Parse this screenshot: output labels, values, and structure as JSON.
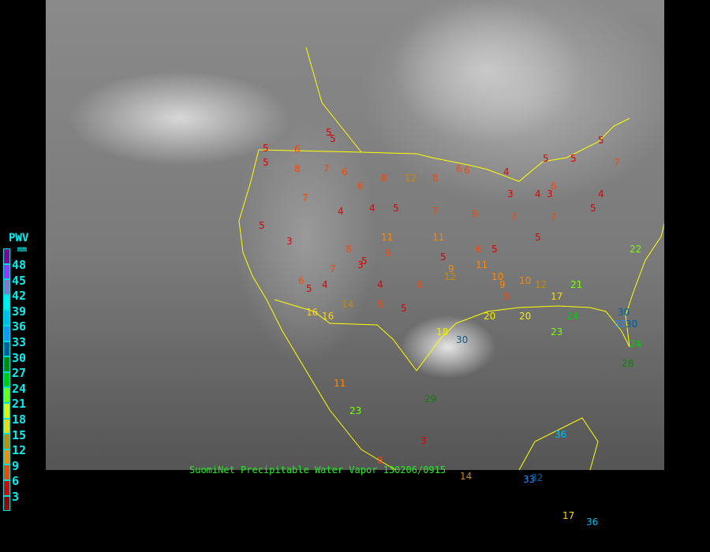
{
  "caption": "SuomiNet Precipitable Water Vapor  130206/0915",
  "legend": {
    "title": "PWV",
    "unit": "mm",
    "labels": [
      "48",
      "45",
      "42",
      "39",
      "36",
      "33",
      "30",
      "27",
      "24",
      "21",
      "18",
      "15",
      "12",
      "9",
      "6",
      "3"
    ],
    "colors": [
      "#8b008b",
      "#9933ff",
      "#8877cc",
      "#00eeee",
      "#00bbee",
      "#1e90ff",
      "#005f99",
      "#008800",
      "#00cc00",
      "#77ff00",
      "#eeee00",
      "#ffd700",
      "#cc8800",
      "#ff8800",
      "#ff4400",
      "#dd0000",
      "#990000"
    ]
  },
  "border_color": "#ffff00",
  "stations": [
    "5",
    "5",
    "6",
    "7",
    "8",
    "6",
    "5",
    "6",
    "8",
    "12",
    "8",
    "6",
    "6",
    "4",
    "5",
    "5",
    "6",
    "3",
    "4",
    "3",
    "4",
    "4",
    "5",
    "7",
    "7",
    "7",
    "5",
    "7",
    "4",
    "5",
    "6",
    "5",
    "3",
    "5",
    "7",
    "11",
    "11",
    "6",
    "8",
    "6",
    "5",
    "3",
    "8",
    "5",
    "6",
    "4",
    "5",
    "4",
    "6",
    "5",
    "9",
    "12",
    "16",
    "16",
    "14",
    "11",
    "10",
    "9",
    "8",
    "10",
    "12",
    "17",
    "20",
    "21",
    "20",
    "22",
    "24",
    "23",
    "30",
    "33",
    "30",
    "24",
    "28",
    "18",
    "30",
    "29",
    "23",
    "11",
    "3",
    "8",
    "14",
    "33",
    "32",
    "36",
    "17",
    "36",
    "5",
    "5",
    "7"
  ]
}
